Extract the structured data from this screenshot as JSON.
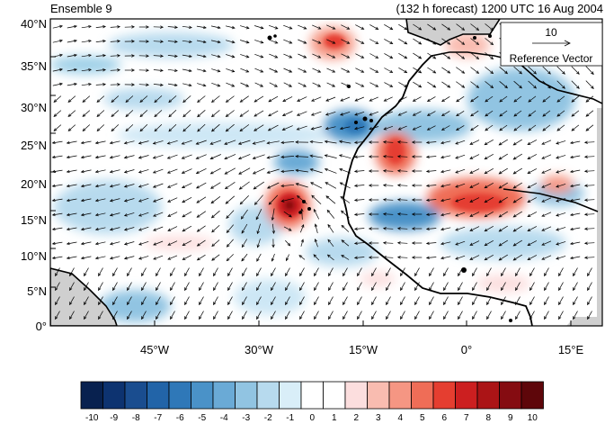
{
  "header": {
    "left_title": "Ensemble 9",
    "right_title": "(132 h forecast) 1200 UTC 16 Aug 2004"
  },
  "lat_labels": [
    "40°N",
    "35°N",
    "30°N",
    "25°N",
    "20°N",
    "15°N",
    "10°N",
    "5°N",
    "0°"
  ],
  "lon_labels": [
    "45°W",
    "30°W",
    "15°W",
    "0°",
    "15°E"
  ],
  "reference_vector": {
    "value": "10",
    "label": "Reference Vector"
  },
  "colorbar": {
    "labels": [
      "-10",
      "-9",
      "-8",
      "-7",
      "-6",
      "-5",
      "-4",
      "-3",
      "-2",
      "-1",
      "0",
      "1",
      "2",
      "3",
      "4",
      "5",
      "6",
      "7",
      "8",
      "9",
      "10"
    ],
    "colors": [
      "#08214f",
      "#0d3370",
      "#1a4d8f",
      "#2264a8",
      "#2f78b8",
      "#4a92c8",
      "#6aaad6",
      "#91c4e2",
      "#b7daee",
      "#d9eef8",
      "#ffffff",
      "#ffffff",
      "#fcdede",
      "#f9bcb0",
      "#f59683",
      "#ef6d57",
      "#e53e30",
      "#cc1f20",
      "#ab1416",
      "#850c11",
      "#5e060a"
    ]
  },
  "colors": {
    "land": "#cfcfcf",
    "coast": "#000000"
  }
}
